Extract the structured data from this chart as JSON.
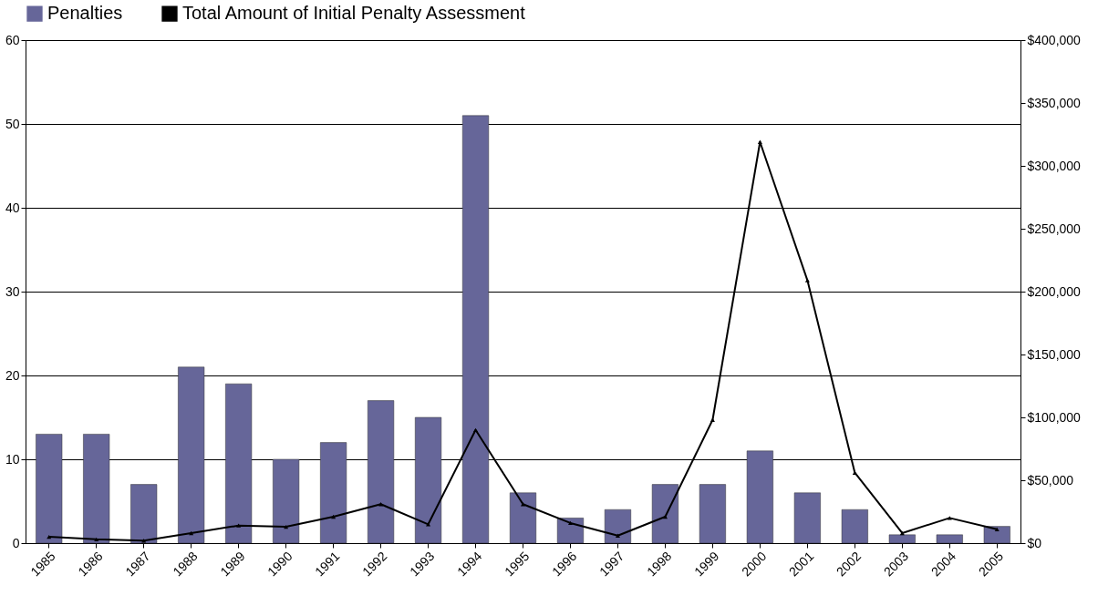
{
  "chart_data": {
    "type": "bar",
    "categories": [
      "1985",
      "1986",
      "1987",
      "1988",
      "1989",
      "1990",
      "1991",
      "1992",
      "1993",
      "1994",
      "1995",
      "1996",
      "1997",
      "1998",
      "1999",
      "2000",
      "2001",
      "2002",
      "2003",
      "2004",
      "2005"
    ],
    "series": [
      {
        "name": "Penalties",
        "color": "#666699",
        "values": [
          13,
          13,
          7,
          21,
          19,
          10,
          12,
          17,
          15,
          51,
          6,
          3,
          4,
          7,
          7,
          11,
          6,
          4,
          1,
          1,
          2
        ]
      },
      {
        "name": "Total Amount of Initial Penalty Assessment",
        "type": "line",
        "axis": "y2",
        "color": "#000000",
        "marker": "triangle",
        "values": [
          5000,
          3000,
          2000,
          8000,
          14000,
          13000,
          21000,
          31000,
          15000,
          90000,
          31000,
          16000,
          6000,
          21000,
          98000,
          319000,
          209000,
          56000,
          8000,
          20000,
          11000
        ]
      }
    ],
    "ylim": [
      0,
      60
    ],
    "yticks": [
      0,
      10,
      20,
      30,
      40,
      50,
      60
    ],
    "y2lim": [
      0,
      400000
    ],
    "y2ticks": [
      {
        "value": 0,
        "label": "$0"
      },
      {
        "value": 50000,
        "label": "$50,000"
      },
      {
        "value": 100000,
        "label": "$100,000"
      },
      {
        "value": 150000,
        "label": "$150,000"
      },
      {
        "value": 200000,
        "label": "$200,000"
      },
      {
        "value": 250000,
        "label": "$250,000"
      },
      {
        "value": 300000,
        "label": "$300,000"
      },
      {
        "value": 350000,
        "label": "$350,000"
      },
      {
        "value": 400000,
        "label": "$400,000"
      }
    ],
    "grid": "y",
    "legend": "top",
    "line_style": "solid"
  }
}
